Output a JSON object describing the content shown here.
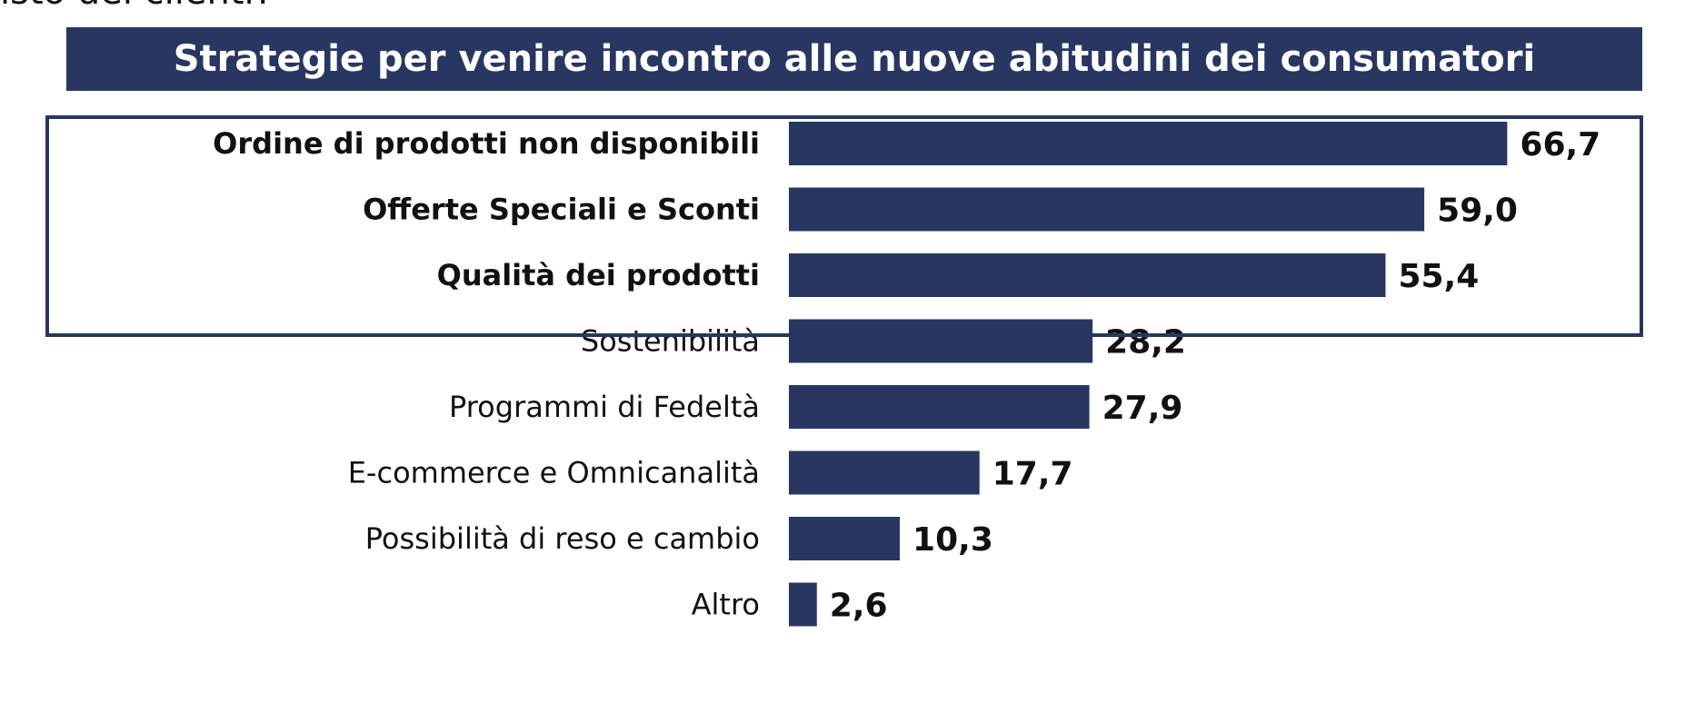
{
  "header": {
    "question_fragment": "isto dei clienti?"
  },
  "chart_data": {
    "type": "bar",
    "orientation": "horizontal",
    "title": "Strategie per venire incontro alle nuove abitudini dei consumatori",
    "categories": [
      "Ordine di prodotti non disponibili",
      "Offerte Speciali e Sconti",
      "Qualità dei prodotti",
      "Sostenibilità",
      "Programmi di Fedeltà",
      "E-commerce e Omnicanalità",
      "Possibilità di reso e cambio",
      "Altro"
    ],
    "values": [
      66.7,
      59.0,
      55.4,
      28.2,
      27.9,
      17.7,
      10.3,
      2.6
    ],
    "value_labels": [
      "66,7",
      "59,0",
      "55,4",
      "28,2",
      "27,9",
      "17,7",
      "10,3",
      "2,6"
    ],
    "highlighted_count": 3,
    "xlim": [
      0,
      70
    ],
    "grid": false,
    "legend": "none",
    "colors": {
      "bar": "#283761",
      "banner": "#283761",
      "highlight_border": "#283761"
    }
  }
}
